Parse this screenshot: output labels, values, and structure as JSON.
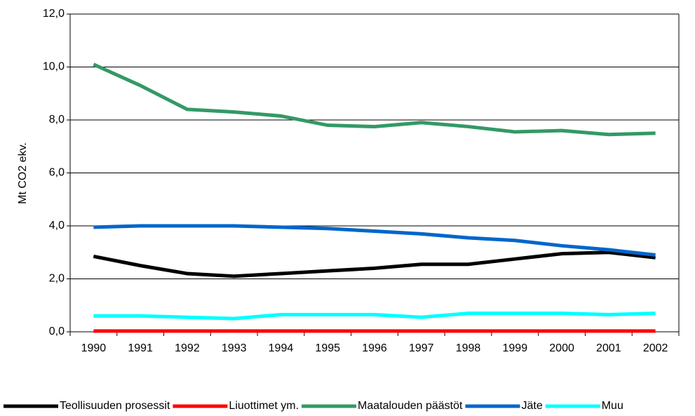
{
  "chart_data": {
    "type": "line",
    "y_label": "Mt CO2 ekv.",
    "categories": [
      "1990",
      "1991",
      "1992",
      "1993",
      "1994",
      "1995",
      "1996",
      "1997",
      "1998",
      "1999",
      "2000",
      "2001",
      "2002"
    ],
    "series": [
      {
        "name": "Teollisuuden prosessit",
        "color": "#000000",
        "values": [
          2.85,
          2.5,
          2.2,
          2.1,
          2.2,
          2.3,
          2.4,
          2.55,
          2.55,
          2.75,
          2.95,
          3.0,
          2.8
        ]
      },
      {
        "name": "Liuottimet ym.",
        "color": "#ff0000",
        "values": [
          0.03,
          0.03,
          0.03,
          0.03,
          0.03,
          0.03,
          0.03,
          0.03,
          0.03,
          0.03,
          0.03,
          0.03,
          0.03
        ]
      },
      {
        "name": "Maatalouden päästöt",
        "color": "#339966",
        "values": [
          10.1,
          9.3,
          8.4,
          8.3,
          8.15,
          7.8,
          7.75,
          7.9,
          7.75,
          7.55,
          7.6,
          7.45,
          7.5
        ]
      },
      {
        "name": "Jäte",
        "color": "#0066cc",
        "values": [
          3.95,
          4.0,
          4.0,
          4.0,
          3.95,
          3.9,
          3.8,
          3.7,
          3.55,
          3.45,
          3.25,
          3.1,
          2.9
        ]
      },
      {
        "name": "Muu",
        "color": "#00ffff",
        "values": [
          0.6,
          0.6,
          0.55,
          0.5,
          0.65,
          0.65,
          0.65,
          0.55,
          0.7,
          0.7,
          0.7,
          0.65,
          0.7
        ]
      }
    ],
    "ylim": [
      0,
      12
    ],
    "yticks": [
      {
        "value": 0,
        "label": "0,0"
      },
      {
        "value": 2,
        "label": "2,0"
      },
      {
        "value": 4,
        "label": "4,0"
      },
      {
        "value": 6,
        "label": "6,0"
      },
      {
        "value": 8,
        "label": "8,0"
      },
      {
        "value": 10,
        "label": "10,0"
      },
      {
        "value": 12,
        "label": "12,0"
      }
    ],
    "grid": true,
    "legend": "bottom"
  }
}
